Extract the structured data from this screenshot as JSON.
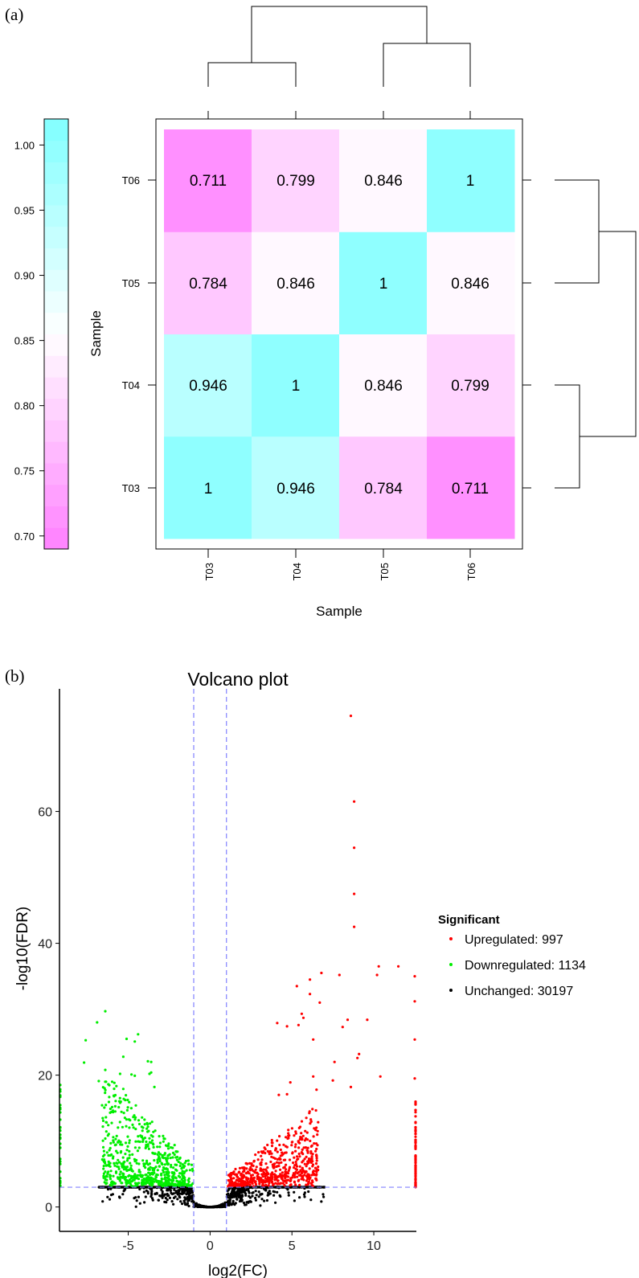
{
  "chart_data": [
    {
      "panel_label": "(a)",
      "type": "heatmap",
      "xlabel": "Sample",
      "ylabel": "Sample",
      "x_categories": [
        "T03",
        "T04",
        "T05",
        "T06"
      ],
      "y_categories": [
        "T03",
        "T04",
        "T05",
        "T06"
      ],
      "values": [
        [
          1,
          0.946,
          0.784,
          0.711
        ],
        [
          0.946,
          1,
          0.846,
          0.799
        ],
        [
          0.784,
          0.846,
          1,
          0.846
        ],
        [
          0.711,
          0.799,
          0.846,
          1
        ]
      ],
      "cell_labels": [
        [
          "1",
          "0.946",
          "0.784",
          "0.711"
        ],
        [
          "0.946",
          "1",
          "0.846",
          "0.799"
        ],
        [
          "0.784",
          "0.846",
          "1",
          "0.846"
        ],
        [
          "0.711",
          "0.799",
          "0.846",
          "1"
        ]
      ],
      "colorbar": {
        "ticks": [
          "0.70",
          "0.75",
          "0.80",
          "0.85",
          "0.90",
          "0.95",
          "1.00"
        ],
        "range": [
          0.69,
          1.02
        ],
        "low_color": "#ff80ff",
        "mid_color": "#ffffff",
        "high_color": "#80ffff",
        "mid_value": 0.855,
        "position": "left"
      },
      "dendrogram": {
        "clusters": [
          [
            "T03",
            "T04"
          ],
          [
            "T05",
            "T06"
          ]
        ],
        "position": [
          "top",
          "right"
        ]
      }
    },
    {
      "panel_label": "(b)",
      "type": "scatter",
      "title": "Volcano plot",
      "xlabel": "log2(FC)",
      "ylabel": "-log10(FDR)",
      "xlim": [
        -9.2,
        12.6
      ],
      "ylim": [
        -3.7,
        78.6
      ],
      "x_ticks": [
        -5,
        0,
        5,
        10
      ],
      "y_ticks": [
        0,
        20,
        40,
        60
      ],
      "thresholds": {
        "log2fc": [
          -1,
          1
        ],
        "neg_log10_fdr": 3,
        "color": "#8080ff"
      },
      "legend": {
        "title": "Significant",
        "position": "right",
        "items": [
          {
            "label": "Upregulated: 997",
            "color": "#ff0000"
          },
          {
            "label": "Downregulated: 1134",
            "color": "#00ee00"
          },
          {
            "label": "Unchanged: 30197",
            "color": "#000000"
          }
        ]
      },
      "series": [
        {
          "name": "Upregulated",
          "count": 997,
          "color": "#ff0000",
          "notable_points": [
            [
              8.6,
              74.5
            ],
            [
              8.8,
              61.5
            ],
            [
              8.8,
              54.5
            ],
            [
              8.8,
              47.5
            ],
            [
              8.8,
              42.5
            ],
            [
              10.3,
              36.5
            ],
            [
              11.5,
              36.5
            ],
            [
              10.2,
              35.2
            ],
            [
              7.9,
              35.2
            ],
            [
              6.8,
              35.5
            ],
            [
              6.1,
              34.5
            ],
            [
              5.3,
              33.5
            ],
            [
              6.1,
              32.3
            ],
            [
              12.5,
              35
            ],
            [
              12.5,
              31.2
            ],
            [
              6.7,
              31
            ],
            [
              5.6,
              29.3
            ],
            [
              5.7,
              28.7
            ],
            [
              8.4,
              28.4
            ],
            [
              9.6,
              28.4
            ],
            [
              4.1,
              27.9
            ],
            [
              4.7,
              27.4
            ],
            [
              5.4,
              27.6
            ],
            [
              8.1,
              27.3
            ],
            [
              6.3,
              25.4
            ],
            [
              12.5,
              25.4
            ],
            [
              9.1,
              23.2
            ],
            [
              9.0,
              22.6
            ],
            [
              7.6,
              22
            ],
            [
              6.3,
              19.8
            ],
            [
              10.4,
              19.8
            ],
            [
              12.5,
              19.5
            ],
            [
              7.5,
              19.2
            ],
            [
              4.9,
              18.9
            ],
            [
              8.6,
              18.2
            ],
            [
              6.5,
              17.8
            ],
            [
              4.2,
              17
            ],
            [
              4.7,
              17.1
            ]
          ]
        },
        {
          "name": "Downregulated",
          "count": 1134,
          "color": "#00ee00",
          "notable_points": [
            [
              -6.4,
              29.7
            ],
            [
              -6.9,
              28
            ],
            [
              -7.6,
              25.3
            ],
            [
              -4.4,
              26.2
            ],
            [
              -5.1,
              25.5
            ],
            [
              -4.6,
              25.1
            ],
            [
              -5.3,
              22.8
            ],
            [
              -7.7,
              21.9
            ],
            [
              -3.8,
              22.1
            ],
            [
              -3.6,
              22
            ],
            [
              -6.4,
              20.8
            ],
            [
              -5.5,
              20.2
            ],
            [
              -4.8,
              20.1
            ],
            [
              -4.6,
              19.9
            ],
            [
              -3.6,
              20.4
            ],
            [
              -3.7,
              20.2
            ],
            [
              -6.8,
              19.1
            ],
            [
              -3.4,
              18.2
            ],
            [
              -5.3,
              17.9
            ]
          ]
        },
        {
          "name": "Unchanged",
          "count": 30197,
          "color": "#000000"
        }
      ]
    }
  ]
}
